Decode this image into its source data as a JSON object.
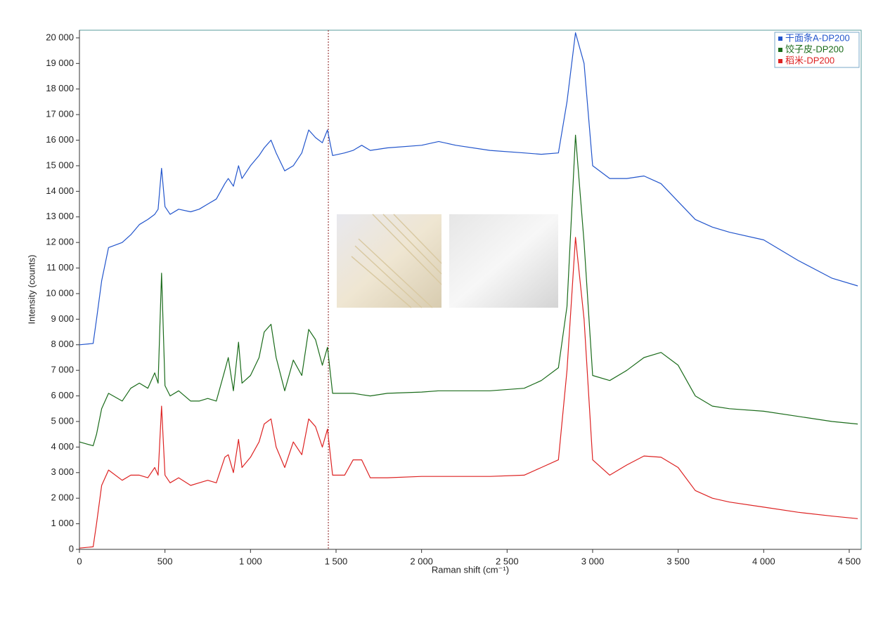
{
  "chart_data": {
    "type": "line",
    "xlabel": "Raman shift (cm⁻¹)",
    "ylabel": "Intensity (counts)",
    "x": [
      0,
      80,
      100,
      130,
      170,
      250,
      300,
      350,
      400,
      440,
      460,
      480,
      500,
      530,
      580,
      650,
      700,
      750,
      800,
      850,
      870,
      900,
      930,
      950,
      1000,
      1050,
      1080,
      1120,
      1150,
      1200,
      1250,
      1300,
      1340,
      1380,
      1420,
      1450,
      1480,
      1550,
      1600,
      1650,
      1700,
      1800,
      2000,
      2100,
      2200,
      2400,
      2600,
      2700,
      2800,
      2850,
      2900,
      2950,
      3000,
      3100,
      3200,
      3300,
      3400,
      3500,
      3600,
      3700,
      3800,
      4000,
      4200,
      4400,
      4550
    ],
    "series": [
      {
        "name": "干面条A-DP200",
        "color": "#2255cc",
        "values": [
          8000,
          8050,
          9000,
          10500,
          11800,
          12000,
          12300,
          12700,
          12900,
          13100,
          13300,
          14900,
          13400,
          13100,
          13300,
          13200,
          13300,
          13500,
          13700,
          14300,
          14500,
          14200,
          15000,
          14500,
          15000,
          15400,
          15700,
          16000,
          15500,
          14800,
          15000,
          15500,
          16400,
          16100,
          15900,
          16400,
          15400,
          15500,
          15600,
          15800,
          15600,
          15700,
          15800,
          15950,
          15800,
          15600,
          15500,
          15450,
          15500,
          17500,
          20200,
          19000,
          15000,
          14500,
          14500,
          14600,
          14300,
          13600,
          12900,
          12600,
          12400,
          12100,
          11300,
          10600,
          10300
        ]
      },
      {
        "name": "饺子皮-DP200",
        "color": "#1a6b1a",
        "values": [
          4200,
          4050,
          4500,
          5500,
          6100,
          5800,
          6300,
          6500,
          6300,
          6900,
          6500,
          10800,
          6400,
          6000,
          6200,
          5800,
          5800,
          5900,
          5800,
          7000,
          7500,
          6200,
          8100,
          6500,
          6800,
          7500,
          8500,
          8800,
          7500,
          6200,
          7400,
          6800,
          8600,
          8200,
          7200,
          7900,
          6100,
          6100,
          6100,
          6050,
          6000,
          6100,
          6150,
          6200,
          6200,
          6200,
          6300,
          6600,
          7100,
          9500,
          16200,
          12000,
          6800,
          6600,
          7000,
          7500,
          7700,
          7200,
          6000,
          5600,
          5500,
          5400,
          5200,
          5000,
          4900
        ]
      },
      {
        "name": "稻米-DP200",
        "color": "#dd2222",
        "values": [
          50,
          100,
          1000,
          2500,
          3100,
          2700,
          2900,
          2900,
          2800,
          3200,
          2900,
          5600,
          2900,
          2600,
          2800,
          2500,
          2600,
          2700,
          2600,
          3600,
          3700,
          3000,
          4300,
          3200,
          3600,
          4200,
          4900,
          5100,
          4000,
          3200,
          4200,
          3700,
          5100,
          4800,
          4000,
          4700,
          2900,
          2900,
          3500,
          3500,
          2800,
          2800,
          2850,
          2850,
          2850,
          2850,
          2900,
          3200,
          3500,
          7000,
          12200,
          9000,
          3500,
          2900,
          3300,
          3650,
          3600,
          3200,
          2300,
          2000,
          1850,
          1650,
          1450,
          1300,
          1200
        ]
      }
    ],
    "xlim": [
      0,
      4570
    ],
    "ylim": [
      0,
      20300
    ],
    "xticks": [
      0,
      500,
      {
        "value": 1000,
        "label": "1 000"
      },
      {
        "value": 1500,
        "label": "1 500"
      },
      {
        "value": 2000,
        "label": "2 000"
      },
      {
        "value": 2500,
        "label": "2 500"
      },
      {
        "value": 3000,
        "label": "3 000"
      },
      {
        "value": 3500,
        "label": "3 500"
      },
      {
        "value": 4000,
        "label": "4 000"
      },
      {
        "value": 4500,
        "label": "4 500"
      }
    ],
    "yticks": [
      0,
      {
        "value": 1000,
        "label": "1 000"
      },
      {
        "value": 2000,
        "label": "2 000"
      },
      {
        "value": 3000,
        "label": "3 000"
      },
      {
        "value": 4000,
        "label": "4 000"
      },
      {
        "value": 5000,
        "label": "5 000"
      },
      {
        "value": 6000,
        "label": "6 000"
      },
      {
        "value": 7000,
        "label": "7 000"
      },
      {
        "value": 8000,
        "label": "8 000"
      },
      {
        "value": 9000,
        "label": "9 000"
      },
      {
        "value": 10000,
        "label": "10 000"
      },
      {
        "value": 11000,
        "label": "11 000"
      },
      {
        "value": 12000,
        "label": "12 000"
      },
      {
        "value": 13000,
        "label": "13 000"
      },
      {
        "value": 14000,
        "label": "14 000"
      },
      {
        "value": 15000,
        "label": "15 000"
      },
      {
        "value": 16000,
        "label": "16 000"
      },
      {
        "value": 17000,
        "label": "17 000"
      },
      {
        "value": 18000,
        "label": "18 000"
      },
      {
        "value": 19000,
        "label": "19 000"
      },
      {
        "value": 20000,
        "label": "20 000"
      }
    ],
    "vline": 1455,
    "legend": "upper right",
    "grid": false
  }
}
